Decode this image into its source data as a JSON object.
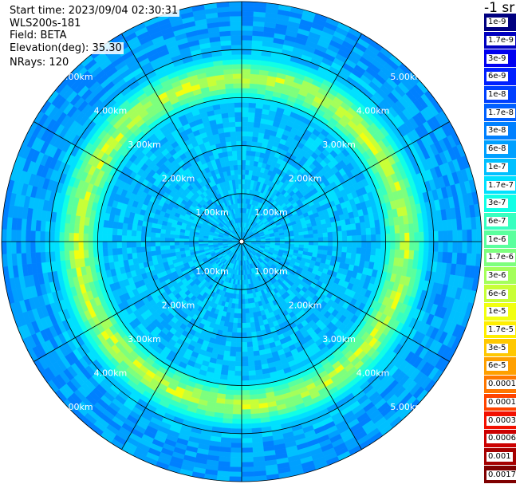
{
  "header": {
    "start_time_label": "Start time: 2023/09/04 02:30:31",
    "instrument": "WLS200s-181",
    "field_label": "Field: BETA",
    "elevation_label": "Elevation(deg): 35.30",
    "nrays_label": "NRays: 120"
  },
  "colorbar": {
    "unit_label": "-1 sr",
    "levels": [
      {
        "label": "0.0017",
        "color": "#7f0000"
      },
      {
        "label": "0.001",
        "color": "#a50000"
      },
      {
        "label": "0.0006",
        "color": "#cc0000"
      },
      {
        "label": "0.0003",
        "color": "#f21000"
      },
      {
        "label": "0.00017",
        "color": "#ff4400"
      },
      {
        "label": "0.0001",
        "color": "#ff7700"
      },
      {
        "label": "6e-5",
        "color": "#ffa000"
      },
      {
        "label": "3e-5",
        "color": "#ffc800"
      },
      {
        "label": "1.7e-5",
        "color": "#ffee00"
      },
      {
        "label": "1e-5",
        "color": "#f2ff10"
      },
      {
        "label": "6e-6",
        "color": "#c8ff37"
      },
      {
        "label": "3e-6",
        "color": "#a4ff5a"
      },
      {
        "label": "1.7e-6",
        "color": "#7dff7d"
      },
      {
        "label": "1e-6",
        "color": "#5aff9d"
      },
      {
        "label": "6e-7",
        "color": "#37ffc0"
      },
      {
        "label": "3e-7",
        "color": "#10ffe6"
      },
      {
        "label": "1.7e-7",
        "color": "#00e0ff"
      },
      {
        "label": "1e-7",
        "color": "#00c0ff"
      },
      {
        "label": "6e-8",
        "color": "#00a0ff"
      },
      {
        "label": "3e-8",
        "color": "#0080ff"
      },
      {
        "label": "1.7e-8",
        "color": "#0060ff"
      },
      {
        "label": "1e-8",
        "color": "#0040ff"
      },
      {
        "label": "6e-9",
        "color": "#0020ff"
      },
      {
        "label": "3e-9",
        "color": "#0000f0"
      },
      {
        "label": "1.7e-9",
        "color": "#0000c0"
      },
      {
        "label": "1e-9",
        "color": "#000080"
      }
    ]
  },
  "chart_data": {
    "type": "heatmap",
    "projection": "polar",
    "n_rays": 120,
    "ring_labels": [
      "1.00km",
      "2.00km",
      "3.00km",
      "4.00km",
      "5.00km"
    ],
    "ring_range_km": [
      1,
      2,
      3,
      4,
      5
    ],
    "spoke_azimuths_deg": [
      0,
      30,
      60,
      90,
      120,
      150,
      180,
      210,
      240,
      270,
      300,
      330
    ],
    "max_range_km": 5.0,
    "aerosol_layer_range_km": [
      3.0,
      3.8
    ],
    "aerosol_layer_peak_level": "1.7e-5",
    "background_level": "1e-7"
  }
}
